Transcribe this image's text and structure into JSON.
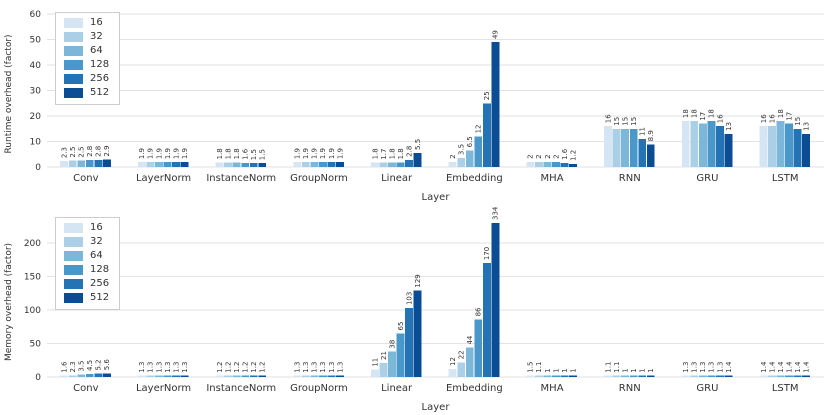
{
  "palette": [
    "#d6e5f4",
    "#abcfe6",
    "#7cb7da",
    "#4a98c9",
    "#2373b5",
    "#0b4d94"
  ],
  "grid_color": "#e2e2e2",
  "legend": [
    "16",
    "32",
    "64",
    "128",
    "256",
    "512"
  ],
  "chart_data": [
    {
      "type": "bar",
      "title": "",
      "ylabel": "Runtime overhead (factor)",
      "xlabel": "Layer",
      "ymax": 60,
      "yticks": [
        0,
        10,
        20,
        30,
        40,
        50,
        60
      ],
      "grid": true,
      "legend_position": "upper left",
      "categories": [
        "Conv",
        "LayerNorm",
        "InstanceNorm",
        "GroupNorm",
        "Linear",
        "Embedding",
        "MHA",
        "RNN",
        "GRU",
        "LSTM"
      ],
      "series": [
        {
          "name": "16",
          "values": [
            "2.3",
            "1.9",
            "1.8",
            "1.9",
            "1.8",
            "2",
            "2",
            "16",
            "18",
            "16"
          ]
        },
        {
          "name": "32",
          "values": [
            "2.5",
            "1.9",
            "1.8",
            "1.9",
            "1.7",
            "3.5",
            "2",
            "15",
            "18",
            "16"
          ]
        },
        {
          "name": "64",
          "values": [
            "2.5",
            "1.9",
            "1.8",
            "1.9",
            "1.8",
            "6.5",
            "2",
            "15",
            "17",
            "18"
          ]
        },
        {
          "name": "128",
          "values": [
            "2.8",
            "1.9",
            "1.6",
            "1.9",
            "1.8",
            "12",
            "2",
            "15",
            "18",
            "17"
          ]
        },
        {
          "name": "256",
          "values": [
            "2.8",
            "1.9",
            "1.5",
            "1.9",
            "2.8",
            "25",
            "1.6",
            "11",
            "16",
            "15"
          ]
        },
        {
          "name": "512",
          "values": [
            "2.9",
            "1.9",
            "1.5",
            "1.9",
            "5.5",
            "49",
            "1.2",
            "8.9",
            "13",
            "13"
          ]
        }
      ]
    },
    {
      "type": "bar",
      "title": "",
      "ylabel": "Memory overhead (factor)",
      "xlabel": "Layer",
      "ymax": 230,
      "yticks": [
        0,
        50,
        100,
        150,
        200
      ],
      "grid": true,
      "legend_position": "upper left",
      "categories": [
        "Conv",
        "LayerNorm",
        "InstanceNorm",
        "GroupNorm",
        "Linear",
        "Embedding",
        "MHA",
        "RNN",
        "GRU",
        "LSTM"
      ],
      "series": [
        {
          "name": "16",
          "values": [
            "1.6",
            "1.3",
            "1.2",
            "1.3",
            "11",
            "12",
            "1.5",
            "1.1",
            "1.3",
            "1.4"
          ]
        },
        {
          "name": "32",
          "values": [
            "2.3",
            "1.3",
            "1.2",
            "1.3",
            "21",
            "22",
            "1.1",
            "1.1",
            "1.3",
            "1.4"
          ]
        },
        {
          "name": "64",
          "values": [
            "3.5",
            "1.3",
            "1.2",
            "1.3",
            "38",
            "44",
            "1",
            "1",
            "1.3",
            "1.4"
          ]
        },
        {
          "name": "128",
          "values": [
            "4.5",
            "1.3",
            "1.2",
            "1.3",
            "65",
            "86",
            "1",
            "1",
            "1.3",
            "1.4"
          ]
        },
        {
          "name": "256",
          "values": [
            "5.2",
            "1.3",
            "1.2",
            "1.3",
            "103",
            "170",
            "1",
            "1",
            "1.3",
            "1.4"
          ]
        },
        {
          "name": "512",
          "values": [
            "5.6",
            "1.3",
            "1.2",
            "1.3",
            "129",
            "334",
            "1",
            "1",
            "1.4",
            "1.4"
          ]
        }
      ]
    }
  ]
}
